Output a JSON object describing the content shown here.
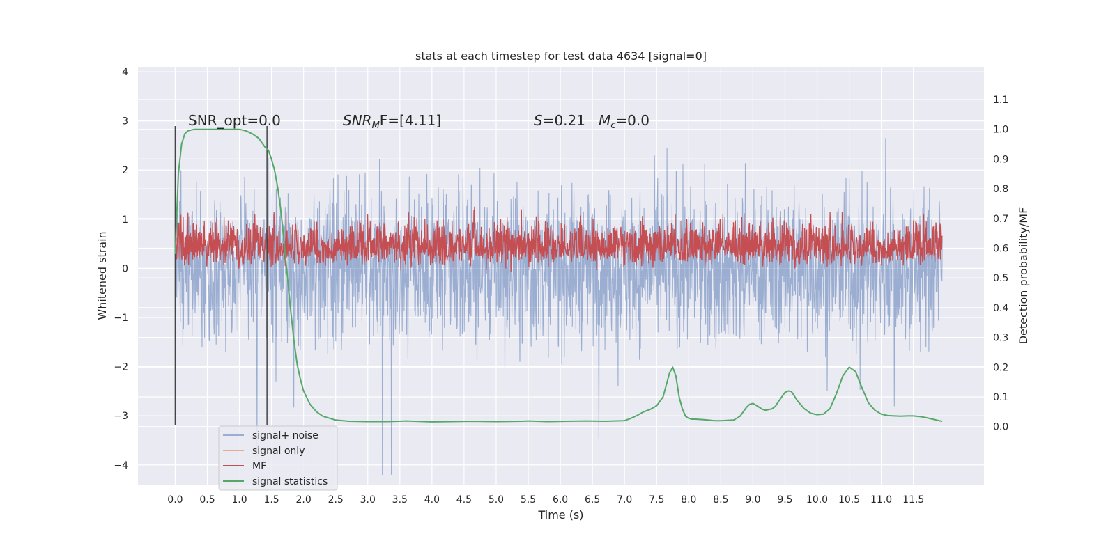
{
  "chart_data": {
    "type": "line",
    "title": "stats at each timestep for test data 4634 [signal=0]",
    "xlabel": "Time (s)",
    "ylabel_left": "Whitened strain",
    "ylabel_right": "Detection probability/MF",
    "xlim": [
      -0.58,
      12.6
    ],
    "ylim_left": [
      -4.4,
      4.1
    ],
    "ylim_right": [
      -0.195,
      1.21
    ],
    "x_ticks": [
      "0.0",
      "0.5",
      "1.0",
      "1.5",
      "2.0",
      "2.5",
      "3.0",
      "3.5",
      "4.0",
      "4.5",
      "5.0",
      "5.5",
      "6.0",
      "6.5",
      "7.0",
      "7.5",
      "8.0",
      "8.5",
      "9.0",
      "9.5",
      "10.0",
      "10.5",
      "11.0",
      "11.5"
    ],
    "y_left_ticks": [
      "4",
      "3",
      "2",
      "1",
      "0",
      "−1",
      "−2",
      "−3",
      "−4"
    ],
    "y_right_ticks": [
      "1.1",
      "1.0",
      "0.9",
      "0.8",
      "0.7",
      "0.6",
      "0.5",
      "0.4",
      "0.3",
      "0.2",
      "0.1",
      "0.0"
    ],
    "annotations": {
      "snr_opt": "SNR_opt=0.0",
      "snr_mf_italic": "SNR",
      "snr_mf_sub": "M",
      "snr_mf_rest": "F=[4.11]",
      "s_italic": "S",
      "s_rest": "=0.21",
      "mc_italic": "M",
      "mc_sub": "c",
      "mc_rest": "=0.0"
    },
    "vlines_x": [
      0.0,
      1.43
    ],
    "legend": {
      "placement": "lower-left",
      "entries": [
        "signal+ noise",
        "signal only",
        "MF",
        "signal statistics"
      ]
    },
    "series_colors": {
      "signal_noise": "#4c72b0",
      "signal_only": "#dd8452",
      "mf": "#c44e52",
      "signal_statistics": "#55a868"
    },
    "background_color": "#eaeaf2",
    "grid": true,
    "series": [
      {
        "name": "signal statistics",
        "axis": "right",
        "x": [
          0.0,
          0.05,
          0.1,
          0.15,
          0.2,
          0.3,
          0.4,
          0.5,
          0.6,
          0.7,
          0.8,
          0.9,
          1.0,
          1.1,
          1.2,
          1.3,
          1.4,
          1.45,
          1.5,
          1.55,
          1.6,
          1.65,
          1.7,
          1.75,
          1.8,
          1.85,
          1.9,
          1.95,
          2.0,
          2.1,
          2.2,
          2.3,
          2.5,
          2.7,
          3.0,
          3.3,
          3.6,
          4.0,
          4.3,
          4.6,
          5.0,
          5.4,
          5.5,
          5.8,
          6.1,
          6.4,
          6.7,
          7.0,
          7.1,
          7.2,
          7.3,
          7.4,
          7.5,
          7.6,
          7.65,
          7.7,
          7.75,
          7.8,
          7.85,
          7.9,
          7.95,
          8.0,
          8.05,
          8.1,
          8.2,
          8.3,
          8.4,
          8.5,
          8.6,
          8.7,
          8.8,
          8.9,
          8.95,
          9.0,
          9.05,
          9.1,
          9.15,
          9.2,
          9.3,
          9.35,
          9.4,
          9.5,
          9.55,
          9.6,
          9.7,
          9.8,
          9.9,
          10.0,
          10.1,
          10.2,
          10.3,
          10.4,
          10.5,
          10.6,
          10.7,
          10.8,
          10.9,
          11.0,
          11.1,
          11.2,
          11.3,
          11.4,
          11.5,
          11.6,
          11.7,
          11.8,
          11.9,
          11.95
        ],
        "y": [
          0.58,
          0.85,
          0.95,
          0.985,
          0.995,
          1.0,
          1.0,
          1.0,
          1.0,
          1.0,
          1.0,
          1.0,
          1.0,
          0.995,
          0.985,
          0.97,
          0.94,
          0.93,
          0.9,
          0.86,
          0.8,
          0.72,
          0.61,
          0.5,
          0.39,
          0.29,
          0.21,
          0.16,
          0.12,
          0.075,
          0.05,
          0.035,
          0.022,
          0.018,
          0.017,
          0.017,
          0.019,
          0.016,
          0.017,
          0.018,
          0.017,
          0.018,
          0.019,
          0.017,
          0.018,
          0.019,
          0.018,
          0.02,
          0.028,
          0.038,
          0.05,
          0.058,
          0.07,
          0.1,
          0.14,
          0.18,
          0.2,
          0.17,
          0.1,
          0.06,
          0.035,
          0.028,
          0.025,
          0.025,
          0.024,
          0.022,
          0.02,
          0.02,
          0.021,
          0.022,
          0.035,
          0.065,
          0.075,
          0.078,
          0.072,
          0.065,
          0.058,
          0.055,
          0.06,
          0.068,
          0.085,
          0.115,
          0.12,
          0.118,
          0.085,
          0.06,
          0.045,
          0.04,
          0.042,
          0.06,
          0.11,
          0.17,
          0.2,
          0.185,
          0.13,
          0.08,
          0.055,
          0.042,
          0.037,
          0.036,
          0.035,
          0.036,
          0.036,
          0.034,
          0.03,
          0.025,
          0.02,
          0.018
        ]
      }
    ]
  }
}
